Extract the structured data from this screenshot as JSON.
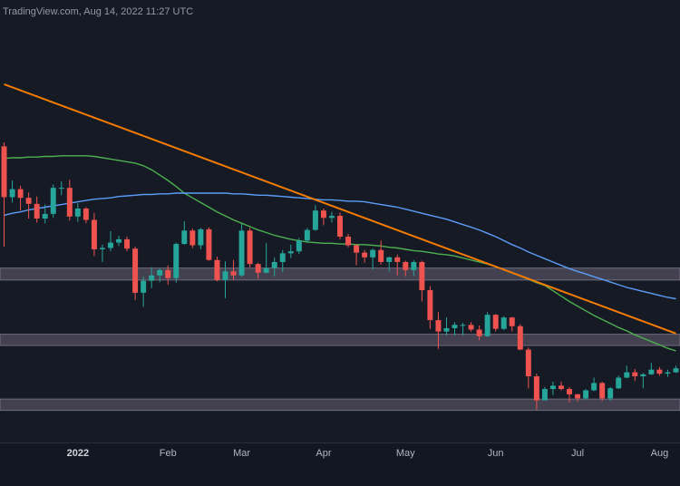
{
  "chart_data": {
    "type": "candlestick",
    "title": "TradingView.com, Aug 14, 2022 11:27 UTC",
    "categories": [
      null,
      null,
      null,
      null,
      null,
      null,
      null,
      null,
      null,
      "2022",
      null,
      null,
      null,
      null,
      null,
      null,
      null,
      null,
      null,
      null,
      "Feb",
      null,
      null,
      null,
      null,
      null,
      null,
      null,
      null,
      "Mar",
      null,
      null,
      null,
      null,
      null,
      null,
      null,
      null,
      null,
      "Apr",
      null,
      null,
      null,
      null,
      null,
      null,
      null,
      null,
      null,
      "May",
      null,
      null,
      null,
      null,
      null,
      null,
      null,
      null,
      null,
      null,
      "Jun",
      null,
      null,
      null,
      null,
      null,
      null,
      null,
      null,
      null,
      "Jul",
      null,
      null,
      null,
      null,
      null,
      null,
      null,
      null,
      null,
      "Aug",
      null,
      null
    ],
    "open": [
      57000,
      49400,
      50600,
      49300,
      48400,
      46200,
      46900,
      50800,
      50800,
      46500,
      47700,
      46000,
      41600,
      41800,
      42600,
      43100,
      41700,
      35100,
      36900,
      37700,
      38500,
      37300,
      42400,
      44400,
      42200,
      44600,
      40000,
      37000,
      38300,
      37700,
      44400,
      39400,
      38100,
      38800,
      39700,
      41000,
      41300,
      42900,
      44500,
      47400,
      46300,
      46600,
      43500,
      42200,
      41100,
      40400,
      41500,
      39700,
      40400,
      39700,
      38500,
      39700,
      35500,
      31000,
      29300,
      29800,
      30300,
      30300,
      29600,
      28600,
      31800,
      29700,
      31400,
      30100,
      26600,
      22600,
      19000,
      20700,
      21200,
      20700,
      19900,
      19300,
      20500,
      21600,
      19300,
      20800,
      22400,
      23200,
      22600,
      22900,
      23600,
      23000,
      23200
    ],
    "high": [
      57600,
      51900,
      51100,
      50100,
      49500,
      48300,
      51300,
      51800,
      52000,
      48500,
      47900,
      47000,
      42300,
      44300,
      43600,
      43500,
      42000,
      37500,
      38900,
      38700,
      39200,
      42600,
      45800,
      44700,
      44800,
      44900,
      40500,
      39800,
      40000,
      45400,
      44800,
      39600,
      42500,
      40400,
      41500,
      42300,
      43300,
      44800,
      48200,
      47700,
      47200,
      47100,
      43900,
      42400,
      41500,
      41700,
      42900,
      40500,
      40800,
      39900,
      40000,
      39900,
      36100,
      32200,
      31400,
      30700,
      30600,
      30700,
      30200,
      32200,
      31900,
      31600,
      31500,
      30400,
      26900,
      23000,
      21000,
      21800,
      21800,
      21000,
      20000,
      20700,
      22400,
      21800,
      21000,
      22700,
      24200,
      23700,
      23100,
      24600,
      24000,
      23600,
      24200
    ],
    "low": [
      42000,
      48600,
      47400,
      46200,
      45600,
      45500,
      46300,
      49700,
      45900,
      45700,
      45500,
      40600,
      39700,
      41300,
      42100,
      41300,
      34000,
      33000,
      35800,
      36700,
      36300,
      36600,
      42300,
      41800,
      41600,
      39900,
      36800,
      34300,
      37000,
      37500,
      38900,
      37200,
      38000,
      37600,
      38200,
      40300,
      40900,
      42600,
      44400,
      45200,
      45600,
      43100,
      41900,
      39200,
      39600,
      38600,
      39300,
      38300,
      37700,
      37600,
      37600,
      33800,
      29700,
      26700,
      28700,
      28700,
      28700,
      29300,
      28000,
      28500,
      29300,
      29500,
      29300,
      26500,
      20800,
      17600,
      19000,
      19800,
      20500,
      18700,
      18800,
      19100,
      20400,
      18900,
      18900,
      20700,
      22300,
      21900,
      20800,
      22800,
      22700,
      22500,
      23100
    ],
    "close": [
      49400,
      50600,
      49300,
      48400,
      46200,
      46900,
      50800,
      50800,
      46500,
      47700,
      46000,
      41600,
      41800,
      42600,
      43100,
      41700,
      35100,
      36900,
      37700,
      38500,
      37300,
      42400,
      44400,
      42200,
      44600,
      40000,
      37000,
      38300,
      37700,
      44400,
      39400,
      38100,
      38800,
      39700,
      41000,
      41300,
      42900,
      44500,
      47400,
      46300,
      46600,
      43500,
      42200,
      41100,
      40400,
      41500,
      39700,
      40400,
      39700,
      38500,
      39700,
      35500,
      31000,
      29300,
      29800,
      30300,
      30300,
      29600,
      28600,
      31800,
      29700,
      31400,
      30100,
      26600,
      22600,
      19000,
      20700,
      21200,
      20700,
      19900,
      19300,
      20500,
      21600,
      19300,
      20800,
      22400,
      23200,
      22600,
      22900,
      23600,
      23000,
      23200,
      23800
    ],
    "up_color": "#26a69a",
    "down_color": "#ef5350",
    "ma": [
      {
        "color": "#4caf50",
        "values": [
          55200,
          55300,
          55300,
          55400,
          55400,
          55500,
          55500,
          55600,
          55600,
          55600,
          55600,
          55500,
          55300,
          55100,
          54900,
          54700,
          54500,
          54100,
          53500,
          52700,
          51900,
          51000,
          50000,
          49300,
          48600,
          47900,
          47200,
          46600,
          46000,
          45500,
          45000,
          44500,
          44100,
          43700,
          43400,
          43100,
          42900,
          42700,
          42600,
          42500,
          42500,
          42400,
          42400,
          42300,
          42300,
          42200,
          42100,
          41900,
          41800,
          41600,
          41400,
          41300,
          41100,
          40900,
          40800,
          40600,
          40300,
          40000,
          39700,
          39400,
          39000,
          38600,
          38100,
          37600,
          37100,
          36600,
          36200,
          35400,
          34600,
          33800,
          33100,
          32400,
          31700,
          31100,
          30500,
          29900,
          29400,
          28800,
          28300,
          27800,
          27300,
          26800,
          26400
        ]
      },
      {
        "color": "#5b9cf6",
        "values": [
          46700,
          47000,
          47200,
          47500,
          47700,
          47900,
          48100,
          48300,
          48500,
          48700,
          48900,
          49100,
          49200,
          49300,
          49500,
          49600,
          49700,
          49800,
          49800,
          49900,
          49900,
          50000,
          50000,
          50000,
          50000,
          50000,
          50000,
          50000,
          49900,
          49900,
          49800,
          49700,
          49700,
          49600,
          49500,
          49400,
          49300,
          49200,
          49100,
          49000,
          49000,
          48900,
          48800,
          48800,
          48700,
          48500,
          48300,
          48100,
          47900,
          47600,
          47300,
          47000,
          46700,
          46400,
          46100,
          45700,
          45300,
          44900,
          44500,
          44000,
          43500,
          42900,
          42300,
          41800,
          41200,
          40700,
          40200,
          39700,
          39200,
          38700,
          38300,
          37900,
          37500,
          37100,
          36700,
          36300,
          35900,
          35600,
          35300,
          35000,
          34700,
          34400,
          34200
        ]
      }
    ],
    "trendline": {
      "color": "#f57c00",
      "start": 66300,
      "end": 29000
    },
    "zones": {
      "color": "#6a6275",
      "ranges": [
        [
          38800,
          37000
        ],
        [
          28900,
          27200
        ],
        [
          19200,
          17500
        ]
      ]
    },
    "ylim": [
      12700,
      78900
    ]
  }
}
